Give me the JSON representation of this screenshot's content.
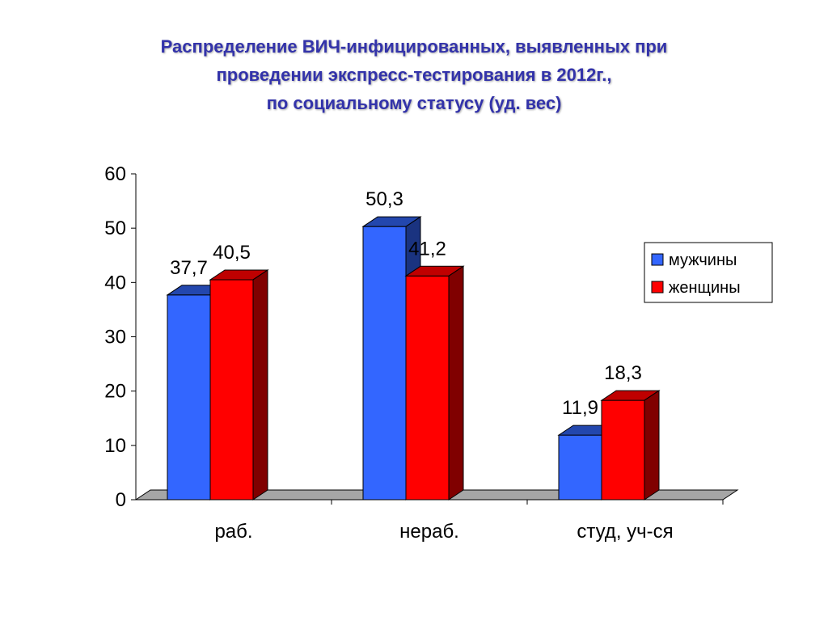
{
  "title": {
    "lines": [
      "Распределение ВИЧ-инфицированных, выявленных при",
      "проведении экспресс-тестирования в 2012г.,",
      "по социальному статусу (уд. вес)"
    ]
  },
  "colors": {
    "title": "#3333aa",
    "men": "#3366ff",
    "women": "#ff0000"
  },
  "chart_data": {
    "type": "bar",
    "categories": [
      "раб.",
      "нераб.",
      "студ, уч-ся"
    ],
    "series": [
      {
        "name": "мужчины",
        "values": [
          37.7,
          50.3,
          11.9
        ],
        "labels": [
          "37,7",
          "50,3",
          "11,9"
        ]
      },
      {
        "name": "женщины",
        "values": [
          40.5,
          41.2,
          18.3
        ],
        "labels": [
          "40,5",
          "41,2",
          "18,3"
        ]
      }
    ],
    "ylim": [
      0,
      60
    ],
    "yticks": [
      "0",
      "10",
      "20",
      "30",
      "40",
      "50",
      "60"
    ],
    "grid": false,
    "legend_position": "right",
    "style": "3d-column"
  }
}
